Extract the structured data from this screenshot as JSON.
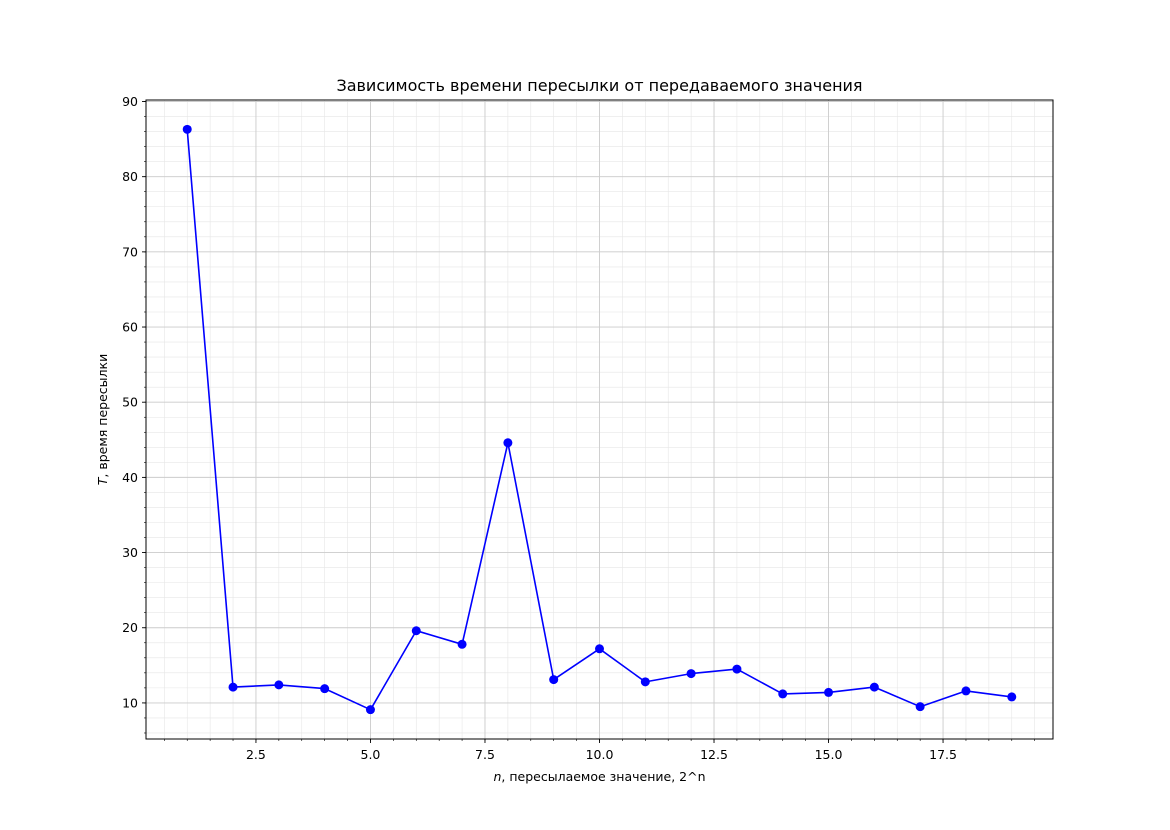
{
  "chart_data": {
    "type": "line",
    "title": "Зависимость времени пересылки от передаваемого значения",
    "xlabel_var": "n",
    "xlabel_rest": ", пересылаемое значение, 2^n",
    "ylabel_var": "T",
    "ylabel_rest": ", время пересылки",
    "xlim": [
      0.1,
      19.9
    ],
    "ylim": [
      5.2,
      90.2
    ],
    "xticks": [
      2.5,
      5.0,
      7.5,
      10.0,
      12.5,
      15.0,
      17.5
    ],
    "xtick_labels": [
      "2.5",
      "5.0",
      "7.5",
      "10.0",
      "12.5",
      "15.0",
      "17.5"
    ],
    "yticks": [
      10,
      20,
      30,
      40,
      50,
      60,
      70,
      80,
      90
    ],
    "ytick_labels": [
      "10",
      "20",
      "30",
      "40",
      "50",
      "60",
      "70",
      "80",
      "90"
    ],
    "grid": true,
    "minor_grid": true,
    "series": [
      {
        "color": "#0000ff",
        "marker": "circle",
        "x": [
          1,
          2,
          3,
          4,
          5,
          6,
          7,
          8,
          9,
          10,
          11,
          12,
          13,
          14,
          15,
          16,
          17,
          18,
          19
        ],
        "y": [
          86.3,
          12.1,
          12.4,
          11.9,
          9.1,
          19.6,
          17.8,
          44.6,
          13.1,
          17.2,
          12.8,
          13.9,
          14.5,
          11.2,
          11.4,
          12.1,
          9.5,
          11.6,
          10.8
        ]
      }
    ]
  }
}
